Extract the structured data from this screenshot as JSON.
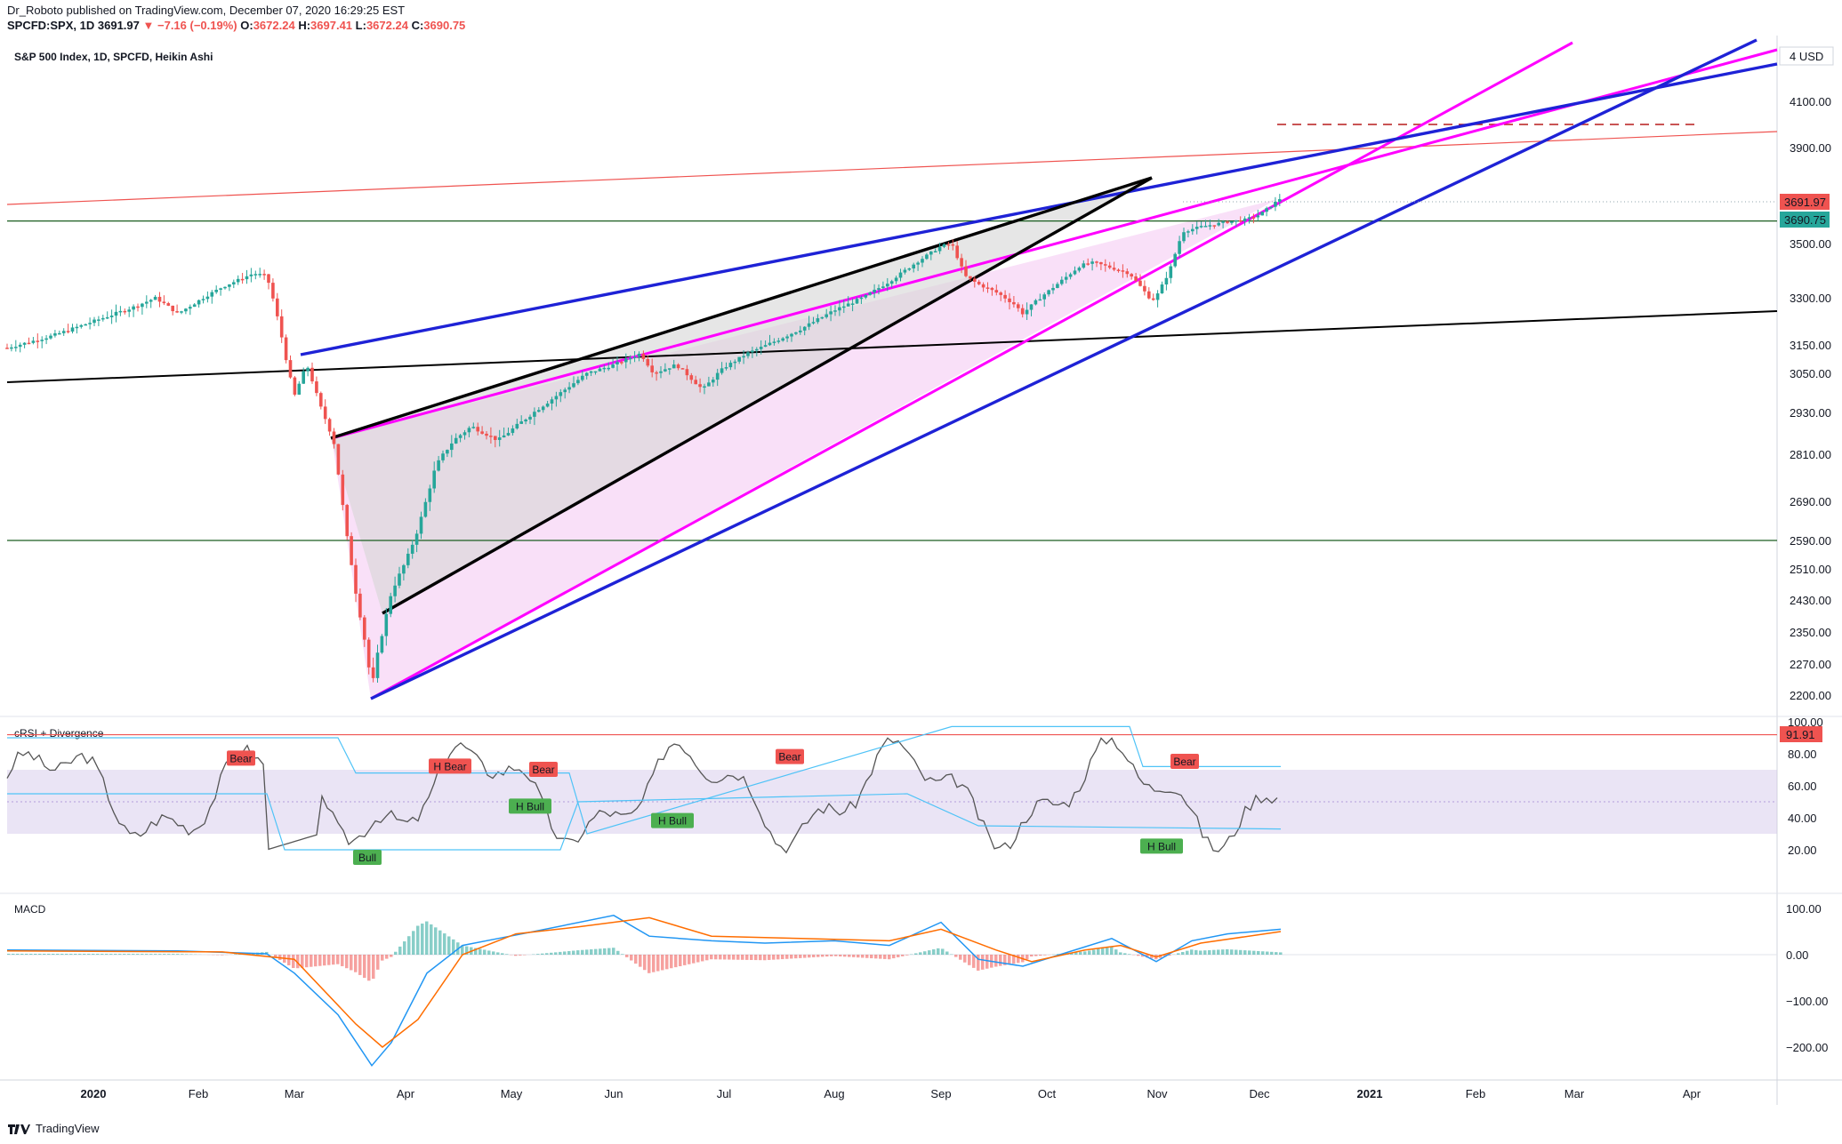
{
  "header": {
    "publisher": "Dr_Roboto",
    "published_text": "published on TradingView.com, December 07, 2020 16:29:25 EST",
    "symbol": "SPCFD:SPX, 1D",
    "last": "3691.97",
    "change": "−7.16 (−0.19%)",
    "o_label": "O:",
    "o_value": "3672.24",
    "h_label": "H:",
    "h_value": "3697.41",
    "l_label": "L:",
    "l_value": "3672.24",
    "c_label": "C:",
    "c_value": "3690.75"
  },
  "main_pane": {
    "title": "S&P 500 Index, 1D, SPCFD, Heikin Ashi",
    "currency": "4 USD",
    "price_labels": [
      {
        "text": "3691.97",
        "color": "#ef5350"
      },
      {
        "text": "3690.75",
        "color": "#26a69a"
      }
    ]
  },
  "rsi_pane": {
    "title": "cRSI + Divergence",
    "value_label": "91.91"
  },
  "macd_pane": {
    "title": "MACD"
  },
  "footer": {
    "brand": "TradingView"
  },
  "colors": {
    "up": "#26a69a",
    "down": "#ef5350",
    "magenta": "#ff00ff",
    "blue": "#1e22d6",
    "black": "#000000",
    "red_line": "#ef5350",
    "green_line": "#1b5e20",
    "wedge_fill": "#f7d6f5",
    "grey_fill": "#d6d6d6",
    "band_fill": "#d1c4e9",
    "macd_line": "#2196f3",
    "signal_line": "#ff6d00"
  },
  "chart_data": {
    "type": "candlestick",
    "chart_type": "Heikin Ashi",
    "symbol": "S&P 500 Index",
    "interval": "1D",
    "y_axis_ticks": [
      4100,
      3900,
      3500,
      3300,
      3150,
      3050,
      2930,
      2810,
      2690,
      2590,
      2510,
      2430,
      2350,
      2270,
      2200
    ],
    "y_scale": "log",
    "x_axis_ticks": [
      "2020",
      "Feb",
      "Mar",
      "Apr",
      "May",
      "Jun",
      "Jul",
      "Aug",
      "Sep",
      "Oct",
      "Nov",
      "Dec",
      "2021",
      "Feb",
      "Mar",
      "Apr"
    ],
    "approx_monthly_close": [
      {
        "month": "2020-01",
        "value": 3230
      },
      {
        "month": "2020-02",
        "value": 2955
      },
      {
        "month": "2020-03",
        "value": 2585
      },
      {
        "month": "2020-04",
        "value": 2912
      },
      {
        "month": "2020-05",
        "value": 3044
      },
      {
        "month": "2020-06",
        "value": 3100
      },
      {
        "month": "2020-07",
        "value": 3271
      },
      {
        "month": "2020-08",
        "value": 3500
      },
      {
        "month": "2020-09",
        "value": 3363
      },
      {
        "month": "2020-10",
        "value": 3270
      },
      {
        "month": "2020-11",
        "value": 3622
      },
      {
        "month": "2020-12",
        "value": 3691
      }
    ],
    "key_levels": {
      "low": 2192,
      "feb_high": 3393,
      "sep_high": 3588,
      "last": 3690.75
    },
    "horizontal_lines": [
      3594,
      2590
    ],
    "crsi_axis_ticks": [
      100,
      80,
      60,
      40,
      20
    ],
    "crsi_labels": [
      "Bear",
      "H Bear",
      "Bear",
      "Bear",
      "Bear",
      "H Bull",
      "H Bull",
      "Bull",
      "H Bull"
    ],
    "macd_axis_ticks": [
      100,
      0,
      -100,
      -200
    ]
  }
}
